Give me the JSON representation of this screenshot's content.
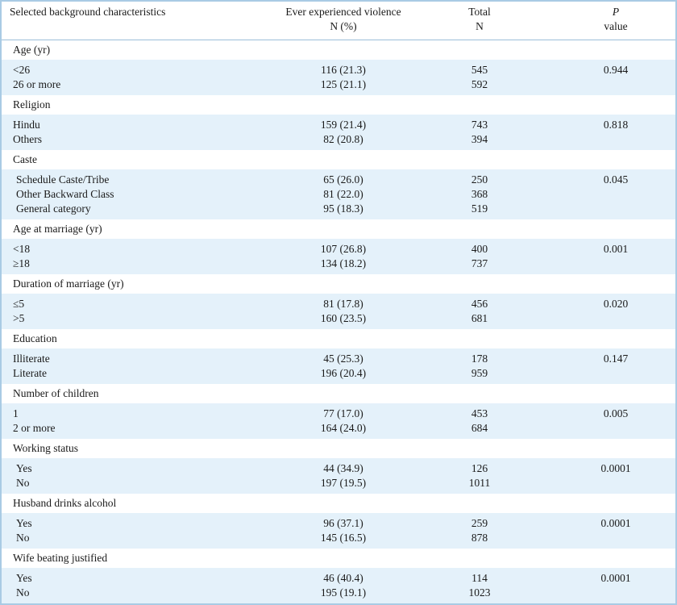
{
  "header": {
    "characteristics": "Selected background characteristics",
    "ever_line1": "Ever experienced violence",
    "ever_line2": "N (%)",
    "total_line1": "Total",
    "total_line2": "N",
    "p_line1": "P",
    "p_line2": "value"
  },
  "sections": [
    {
      "title": "Age (yr)",
      "p": "0.944",
      "rows": [
        {
          "label": "<26",
          "ever": "116 (21.3)",
          "total": "545"
        },
        {
          "label": "26 or more",
          "ever": "125 (21.1)",
          "total": "592"
        }
      ]
    },
    {
      "title": "Religion",
      "p": "0.818",
      "rows": [
        {
          "label": "Hindu",
          "ever": "159 (21.4)",
          "total": "743"
        },
        {
          "label": "Others",
          "ever": "82 (20.8)",
          "total": "394"
        }
      ]
    },
    {
      "title": "Caste",
      "p": "0.045",
      "rows": [
        {
          "label": "Schedule Caste/Tribe",
          "ever": "65 (26.0)",
          "total": "250"
        },
        {
          "label": "Other Backward Class",
          "ever": "81 (22.0)",
          "total": "368"
        },
        {
          "label": "General category",
          "ever": "95 (18.3)",
          "total": "519"
        }
      ]
    },
    {
      "title": "Age at marriage (yr)",
      "p": "0.001",
      "rows": [
        {
          "label": "<18",
          "ever": "107 (26.8)",
          "total": "400"
        },
        {
          "label": "≥18",
          "ever": "134 (18.2)",
          "total": "737"
        }
      ]
    },
    {
      "title": "Duration of marriage (yr)",
      "p": "0.020",
      "rows": [
        {
          "label": "≤5",
          "ever": "81 (17.8)",
          "total": "456"
        },
        {
          "label": ">5",
          "ever": "160 (23.5)",
          "total": "681"
        }
      ]
    },
    {
      "title": "Education",
      "p": "0.147",
      "rows": [
        {
          "label": "Illiterate",
          "ever": "45 (25.3)",
          "total": "178"
        },
        {
          "label": "Literate",
          "ever": "196 (20.4)",
          "total": "959"
        }
      ]
    },
    {
      "title": "Number of children",
      "p": "0.005",
      "rows": [
        {
          "label": "1",
          "ever": "77 (17.0)",
          "total": "453"
        },
        {
          "label": "2 or more",
          "ever": "164 (24.0)",
          "total": "684"
        }
      ]
    },
    {
      "title": "Working status",
      "p": "0.0001",
      "rows": [
        {
          "label": "Yes",
          "ever": "44 (34.9)",
          "total": "126"
        },
        {
          "label": "No",
          "ever": "197 (19.5)",
          "total": "1011"
        }
      ]
    },
    {
      "title": "Husband drinks alcohol",
      "p": "0.0001",
      "rows": [
        {
          "label": "Yes",
          "ever": "96 (37.1)",
          "total": "259"
        },
        {
          "label": "No",
          "ever": "145 (16.5)",
          "total": "878"
        }
      ]
    },
    {
      "title": "Wife beating justified",
      "p": "0.0001",
      "rows": [
        {
          "label": "Yes",
          "ever": "46 (40.4)",
          "total": "114"
        },
        {
          "label": "No",
          "ever": "195 (19.1)",
          "total": "1023"
        }
      ]
    }
  ]
}
